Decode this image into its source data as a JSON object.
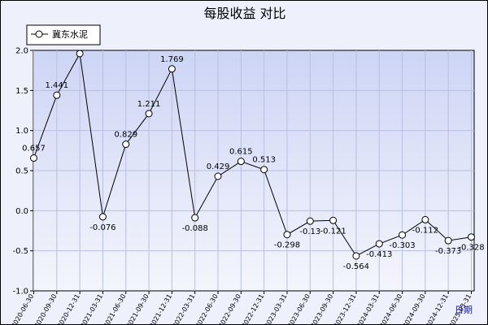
{
  "chart_data": {
    "type": "line",
    "title": "每股收益  对比",
    "xlabel": "日期",
    "ylabel": "",
    "ylim": [
      -1.0,
      2.0
    ],
    "yticks": [
      "2.0",
      "1.5",
      "1.0",
      "0.5",
      "0.0",
      "-0.5",
      "-1.0"
    ],
    "grid": true,
    "legend_position": "top-left",
    "categories": [
      "2020-06-30",
      "2020-09-30",
      "2020-12-31",
      "2021-03-31",
      "2021-06-30",
      "2021-09-30",
      "2021-12-31",
      "2022-03-31",
      "2022-06-30",
      "2022-09-30",
      "2022-12-31",
      "2023-03-31",
      "2023-06-30",
      "2023-09-30",
      "2023-12-31",
      "2024-03-31",
      "2024-06-30",
      "2024-09-30",
      "2024-12-31",
      "2025-03-31"
    ],
    "xtick_labels": [
      "2020-06-30",
      "2020-09-30",
      "2020-12-31",
      "2021-03-31",
      "2021-06-30",
      "2021-09-30",
      "2021-12-31",
      "2022-03-31",
      "2022-06-30",
      "2022-09-30",
      "2022-12-31",
      "2023-03-31",
      "2023-06-30",
      "2023-09-30",
      "2023-12-31",
      "2024-03-31",
      "2024-06-30",
      "2024-09-30",
      "2024-12-31",
      "2025-03-31"
    ],
    "series": [
      {
        "name": "冀东水泥",
        "color": "#000000",
        "values": [
          0.657,
          1.441,
          1.96,
          -0.076,
          0.829,
          1.211,
          1.769,
          -0.088,
          0.429,
          0.615,
          0.513,
          -0.298,
          -0.13,
          -0.121,
          -0.564,
          -0.413,
          -0.303,
          -0.112,
          -0.373,
          -0.328
        ],
        "labels": [
          "0.657",
          "1.441",
          "",
          "-0.076",
          "0.829",
          "1.211",
          "1.769",
          "-0.088",
          "0.429",
          "0.615",
          "0.513",
          "-0.298",
          "-0.13",
          "-0.121",
          "-0.564",
          "-0.413",
          "-0.303",
          "-0.112",
          "-0.373",
          "-0.328"
        ]
      }
    ],
    "colors": {
      "plot_bg_top": "#cdd5f5",
      "plot_bg_bottom": "#f4f5fc",
      "grid": "#b8bfe0",
      "frame_bg": "#eef0fb"
    }
  }
}
